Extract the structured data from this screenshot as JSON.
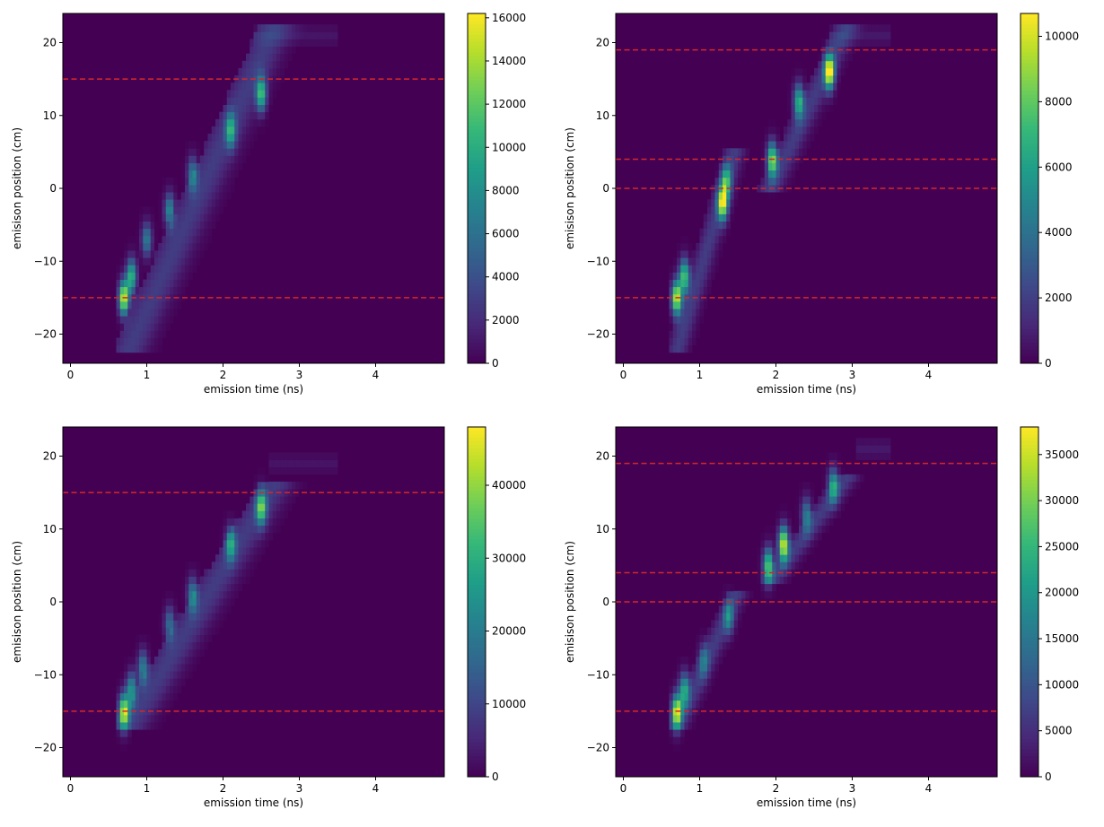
{
  "figure": {
    "layout": "2x2 grid of heatmaps",
    "colormap": "viridis"
  },
  "colormap_stops": [
    "#440154",
    "#482878",
    "#3e4989",
    "#31688e",
    "#26828e",
    "#1f9e89",
    "#35b779",
    "#6ece58",
    "#b5de2b",
    "#fde725"
  ],
  "reference_line_color": "#d62728",
  "chart_data": [
    {
      "type": "heatmap",
      "xlabel": "emission time (ns)",
      "ylabel": "emisison position (cm)",
      "xlim": [
        -0.1,
        4.9
      ],
      "ylim": [
        -24,
        24
      ],
      "xticks": [
        "0",
        "1",
        "2",
        "3",
        "4"
      ],
      "xtick_values": [
        0,
        1,
        2,
        3,
        4
      ],
      "yticks": [
        "20",
        "10",
        "0",
        "−10",
        "−20"
      ],
      "ytick_values": [
        20,
        10,
        0,
        -10,
        -20
      ],
      "colorbar": {
        "min": 0,
        "max": 16200,
        "ticks": [
          "0",
          "2000",
          "4000",
          "6000",
          "8000",
          "10000",
          "12000",
          "14000",
          "16000"
        ],
        "tick_values": [
          0,
          2000,
          4000,
          6000,
          8000,
          10000,
          12000,
          14000,
          16000
        ]
      },
      "hlines": [
        15,
        -15
      ],
      "pattern": {
        "t_start": 0.65,
        "t_end": 2.55,
        "y_start": -22,
        "y_end": 22,
        "hotspots": [
          {
            "t": 0.7,
            "y": -15,
            "v": 16000
          },
          {
            "t": 0.8,
            "y": -12,
            "v": 11000
          },
          {
            "t": 1.0,
            "y": -7,
            "v": 7000
          },
          {
            "t": 1.3,
            "y": -3,
            "v": 8000
          },
          {
            "t": 1.6,
            "y": 2,
            "v": 7000
          },
          {
            "t": 2.1,
            "y": 8,
            "v": 9000
          },
          {
            "t": 2.5,
            "y": 13,
            "v": 11000
          }
        ],
        "tail": {
          "t0": 2.4,
          "t1": 3.5,
          "y": 21,
          "v": 900
        }
      }
    },
    {
      "type": "heatmap",
      "xlabel": "emission time (ns)",
      "ylabel": "emisison position (cm)",
      "xlim": [
        -0.1,
        4.9
      ],
      "ylim": [
        -24,
        24
      ],
      "xticks": [
        "0",
        "1",
        "2",
        "3",
        "4"
      ],
      "xtick_values": [
        0,
        1,
        2,
        3,
        4
      ],
      "yticks": [
        "20",
        "10",
        "0",
        "−10",
        "−20"
      ],
      "ytick_values": [
        20,
        10,
        0,
        -10,
        -20
      ],
      "colorbar": {
        "min": 0,
        "max": 10700,
        "ticks": [
          "0",
          "2000",
          "4000",
          "6000",
          "8000",
          "10000"
        ],
        "tick_values": [
          0,
          2000,
          4000,
          6000,
          8000,
          10000
        ]
      },
      "hlines": [
        19,
        4,
        0,
        -15
      ],
      "pattern": {
        "segments": [
          {
            "t0": 0.65,
            "t1": 1.4,
            "y0": -22,
            "y1": 5
          },
          {
            "t0": 1.85,
            "t1": 2.85,
            "y0": 0,
            "y1": 22
          }
        ],
        "hotspots": [
          {
            "t": 0.7,
            "y": -15,
            "v": 10500
          },
          {
            "t": 0.8,
            "y": -12,
            "v": 8000
          },
          {
            "t": 1.3,
            "y": -2,
            "v": 9500
          },
          {
            "t": 1.35,
            "y": 1,
            "v": 6000
          },
          {
            "t": 1.95,
            "y": 4,
            "v": 9000
          },
          {
            "t": 2.3,
            "y": 12,
            "v": 7000
          },
          {
            "t": 2.7,
            "y": 16,
            "v": 10700
          }
        ],
        "tail": {
          "t0": 2.7,
          "t1": 3.5,
          "y": 21,
          "v": 700
        }
      }
    },
    {
      "type": "heatmap",
      "xlabel": "emission time (ns)",
      "ylabel": "emisison position (cm)",
      "xlim": [
        -0.1,
        4.9
      ],
      "ylim": [
        -24,
        24
      ],
      "xticks": [
        "0",
        "1",
        "2",
        "3",
        "4"
      ],
      "xtick_values": [
        0,
        1,
        2,
        3,
        4
      ],
      "yticks": [
        "20",
        "10",
        "0",
        "−10",
        "−20"
      ],
      "ytick_values": [
        20,
        10,
        0,
        -10,
        -20
      ],
      "colorbar": {
        "min": 0,
        "max": 48000,
        "ticks": [
          "0",
          "10000",
          "20000",
          "30000",
          "40000"
        ],
        "tick_values": [
          0,
          10000,
          20000,
          30000,
          40000
        ]
      },
      "hlines": [
        15,
        -15
      ],
      "pattern": {
        "t_start": 0.65,
        "t_end": 2.55,
        "y_start": -17,
        "y_end": 16,
        "hotspots": [
          {
            "t": 0.7,
            "y": -15,
            "v": 46000
          },
          {
            "t": 0.8,
            "y": -12,
            "v": 26000
          },
          {
            "t": 0.95,
            "y": -9,
            "v": 22000
          },
          {
            "t": 1.3,
            "y": -3,
            "v": 18000
          },
          {
            "t": 1.6,
            "y": 1,
            "v": 22000
          },
          {
            "t": 2.1,
            "y": 8,
            "v": 26000
          },
          {
            "t": 2.5,
            "y": 13,
            "v": 34000
          }
        ],
        "tail": {
          "t0": 2.6,
          "t1": 3.5,
          "y": 19,
          "v": 2500
        }
      }
    },
    {
      "type": "heatmap",
      "xlabel": "emission time (ns)",
      "ylabel": "emisison position (cm)",
      "xlim": [
        -0.1,
        4.9
      ],
      "ylim": [
        -24,
        24
      ],
      "xticks": [
        "0",
        "1",
        "2",
        "3",
        "4"
      ],
      "xtick_values": [
        0,
        1,
        2,
        3,
        4
      ],
      "yticks": [
        "20",
        "10",
        "0",
        "−10",
        "−20"
      ],
      "ytick_values": [
        20,
        10,
        0,
        -10,
        -20
      ],
      "colorbar": {
        "min": 0,
        "max": 38000,
        "ticks": [
          "0",
          "5000",
          "10000",
          "15000",
          "20000",
          "25000",
          "30000",
          "35000"
        ],
        "tick_values": [
          0,
          5000,
          10000,
          15000,
          20000,
          25000,
          30000,
          35000
        ]
      },
      "hlines": [
        19,
        4,
        0,
        -15
      ],
      "pattern": {
        "segments": [
          {
            "t0": 0.65,
            "t1": 1.42,
            "y0": -17,
            "y1": 1
          },
          {
            "t0": 1.88,
            "t1": 2.85,
            "y0": 3,
            "y1": 17
          }
        ],
        "hotspots": [
          {
            "t": 0.7,
            "y": -15,
            "v": 36000
          },
          {
            "t": 0.8,
            "y": -12,
            "v": 22000
          },
          {
            "t": 1.05,
            "y": -8,
            "v": 12000
          },
          {
            "t": 1.38,
            "y": -2,
            "v": 15000
          },
          {
            "t": 1.9,
            "y": 5,
            "v": 30000
          },
          {
            "t": 2.1,
            "y": 8,
            "v": 38000
          },
          {
            "t": 2.4,
            "y": 12,
            "v": 16000
          },
          {
            "t": 2.75,
            "y": 16,
            "v": 22000
          }
        ],
        "tail": {
          "t0": 3.05,
          "t1": 3.5,
          "y": 21,
          "v": 2500
        }
      }
    }
  ]
}
